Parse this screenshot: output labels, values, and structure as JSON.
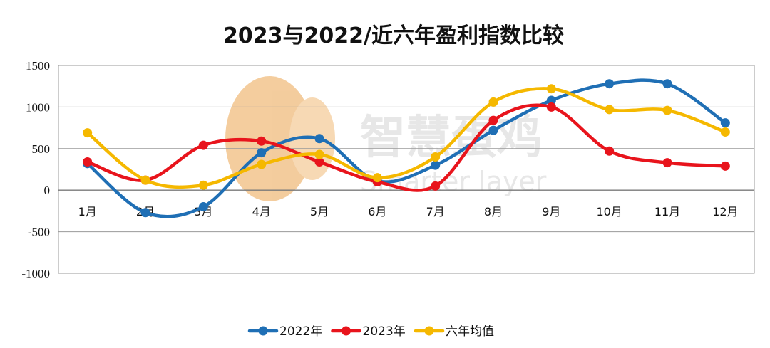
{
  "watermark": {
    "cn": "智慧蛋鸡",
    "en": "Smarter layer",
    "color": "#f2c48d"
  },
  "chart_data": {
    "type": "line",
    "title": "2023与2022/近六年盈利指数比较",
    "categories": [
      "1月",
      "2月",
      "3月",
      "4月",
      "5月",
      "6月",
      "7月",
      "8月",
      "9月",
      "10月",
      "11月",
      "12月"
    ],
    "ylim": [
      -1000,
      1500
    ],
    "yticks": [
      "1500",
      "1000",
      "500",
      "0",
      "-500",
      "-1000"
    ],
    "ytick_values": [
      1500,
      1000,
      500,
      0,
      -500,
      -1000
    ],
    "grid": true,
    "smooth": true,
    "legend_position": "bottom",
    "series": [
      {
        "name": "2022年",
        "color": "#1f6fb5",
        "values": [
          320,
          -270,
          -200,
          450,
          620,
          110,
          300,
          720,
          1080,
          1280,
          1280,
          810
        ]
      },
      {
        "name": "2023年",
        "color": "#e8141c",
        "values": [
          340,
          120,
          540,
          590,
          340,
          100,
          50,
          840,
          1000,
          470,
          330,
          290
        ]
      },
      {
        "name": "六年均值",
        "color": "#f5b800",
        "values": [
          690,
          120,
          60,
          310,
          430,
          150,
          400,
          1060,
          1220,
          970,
          960,
          700
        ]
      }
    ]
  }
}
